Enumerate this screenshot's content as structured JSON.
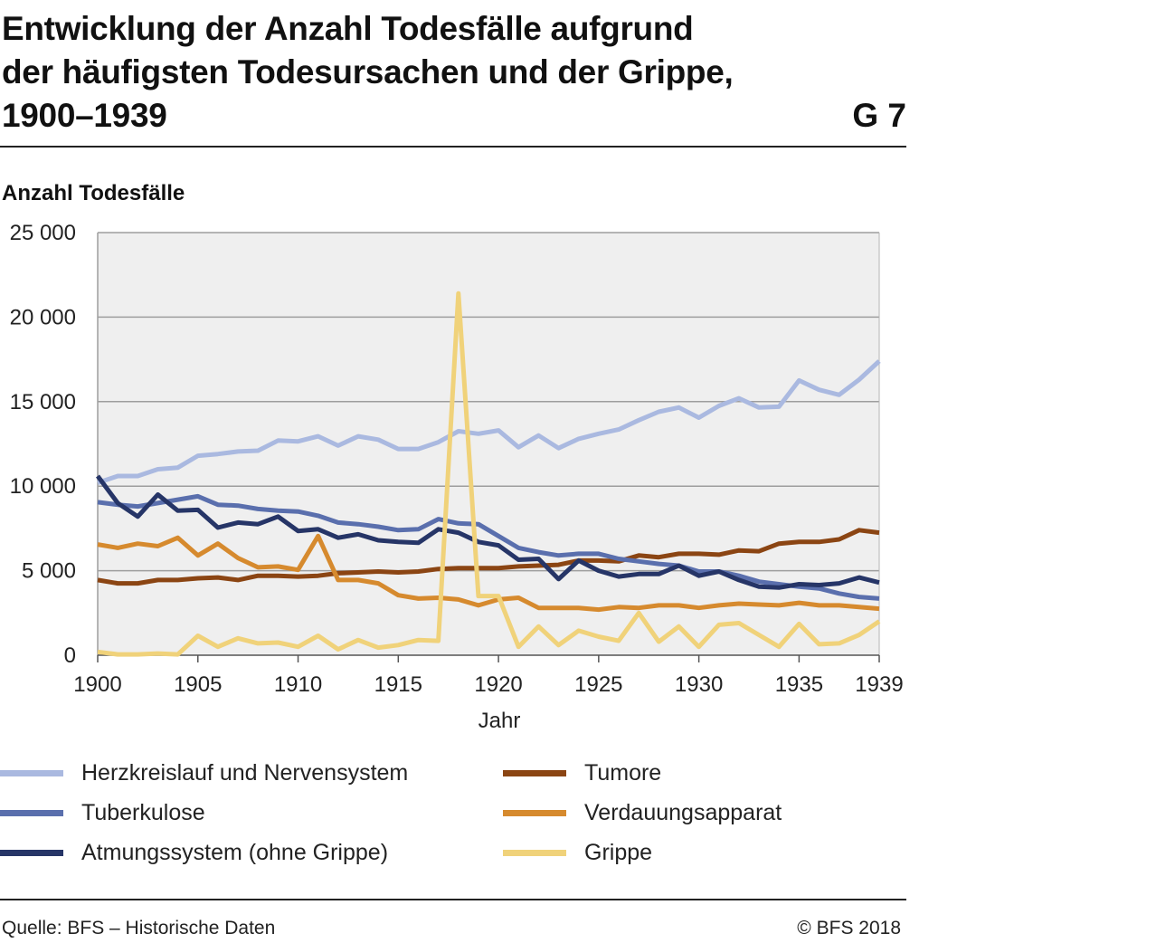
{
  "title_lines": [
    "Entwicklung der Anzahl Todesfälle aufgrund",
    "der häufigsten Todesursachen und der Grippe,",
    "1900–1939"
  ],
  "code": "G 7",
  "ylabel": "Anzahl Todesfälle",
  "source": "Quelle: BFS – Historische Daten",
  "copyright": "© BFS 2018",
  "chart_data": {
    "type": "line",
    "title": "Entwicklung der Anzahl Todesfälle aufgrund der häufigsten Todesursachen und der Grippe, 1900–1939",
    "ylabel": "Anzahl Todesfälle",
    "xlabel": "Jahr",
    "xlim": [
      1900,
      1939
    ],
    "ylim": [
      0,
      25000
    ],
    "y_ticks": [
      0,
      5000,
      10000,
      15000,
      20000,
      25000
    ],
    "y_tick_labels": [
      "0",
      "5 000",
      "10 000",
      "15 000",
      "20 000",
      "25 000"
    ],
    "x_ticks": [
      1900,
      1905,
      1910,
      1915,
      1920,
      1925,
      1930,
      1935,
      1939
    ],
    "x_tick_labels": [
      "1900",
      "1905",
      "1910",
      "1915",
      "1920",
      "1925",
      "1930",
      "1935",
      "1939"
    ],
    "grid": "horizontal",
    "legend_position": "bottom",
    "x": [
      1900,
      1901,
      1902,
      1903,
      1904,
      1905,
      1906,
      1907,
      1908,
      1909,
      1910,
      1911,
      1912,
      1913,
      1914,
      1915,
      1916,
      1917,
      1918,
      1919,
      1920,
      1921,
      1922,
      1923,
      1924,
      1925,
      1926,
      1927,
      1928,
      1929,
      1930,
      1931,
      1932,
      1933,
      1934,
      1935,
      1936,
      1937,
      1938,
      1939
    ],
    "series": [
      {
        "name": "Herzkreislauf und Nervensystem",
        "color": "#aab9e0",
        "values": [
          10200,
          10600,
          10600,
          11000,
          11100,
          11800,
          11900,
          12050,
          12100,
          12700,
          12650,
          12950,
          12400,
          12950,
          12750,
          12200,
          12200,
          12600,
          13250,
          13100,
          13300,
          12300,
          13000,
          12250,
          12800,
          13100,
          13350,
          13900,
          14400,
          14650,
          14050,
          14750,
          15200,
          14650,
          14700,
          16250,
          15700,
          15400,
          16300,
          17400
        ]
      },
      {
        "name": "Tumore",
        "color": "#8b4513",
        "values": [
          4450,
          4250,
          4250,
          4450,
          4450,
          4550,
          4600,
          4450,
          4700,
          4700,
          4650,
          4700,
          4850,
          4900,
          4950,
          4900,
          4950,
          5100,
          5150,
          5150,
          5150,
          5250,
          5300,
          5350,
          5600,
          5600,
          5550,
          5900,
          5800,
          6000,
          6000,
          5950,
          6200,
          6150,
          6600,
          6700,
          6700,
          6850,
          7400,
          7250
        ]
      },
      {
        "name": "Tuberkulose",
        "color": "#5a6fad",
        "values": [
          9050,
          8900,
          8800,
          9000,
          9200,
          9400,
          8900,
          8850,
          8650,
          8550,
          8500,
          8250,
          7850,
          7750,
          7600,
          7400,
          7450,
          8050,
          7800,
          7750,
          7050,
          6350,
          6100,
          5900,
          6000,
          6000,
          5700,
          5550,
          5400,
          5300,
          4950,
          4950,
          4700,
          4350,
          4200,
          4050,
          3950,
          3650,
          3450,
          3350
        ]
      },
      {
        "name": "Verdauungsapparat",
        "color": "#d68a2e",
        "values": [
          6550,
          6350,
          6600,
          6450,
          6950,
          5900,
          6600,
          5750,
          5200,
          5250,
          5050,
          7050,
          4450,
          4450,
          4250,
          3550,
          3350,
          3400,
          3300,
          2950,
          3300,
          3400,
          2800,
          2800,
          2800,
          2700,
          2850,
          2800,
          2950,
          2950,
          2800,
          2950,
          3050,
          3000,
          2950,
          3100,
          2950,
          2950,
          2850,
          2750
        ]
      },
      {
        "name": "Atmungssystem (ohne Grippe)",
        "color": "#263567",
        "values": [
          10600,
          9000,
          8200,
          9500,
          8550,
          8600,
          7550,
          7850,
          7750,
          8200,
          7350,
          7450,
          6950,
          7150,
          6800,
          6700,
          6650,
          7450,
          7250,
          6700,
          6500,
          5650,
          5700,
          4500,
          5600,
          5000,
          4650,
          4800,
          4800,
          5300,
          4700,
          4950,
          4450,
          4050,
          4000,
          4200,
          4150,
          4250,
          4600,
          4300
        ]
      },
      {
        "name": "Grippe",
        "color": "#f0d27a",
        "values": [
          200,
          50,
          50,
          100,
          50,
          1150,
          500,
          1000,
          700,
          750,
          500,
          1150,
          350,
          900,
          450,
          600,
          900,
          850,
          21400,
          3500,
          3500,
          500,
          1700,
          600,
          1450,
          1100,
          850,
          2500,
          800,
          1700,
          500,
          1800,
          1900,
          1200,
          500,
          1850,
          650,
          700,
          1200,
          2000
        ]
      }
    ]
  },
  "legend": [
    {
      "label": "Herzkreislauf und Nervensystem",
      "color": "#aab9e0"
    },
    {
      "label": "Tumore",
      "color": "#8b4513"
    },
    {
      "label": "Tuberkulose",
      "color": "#5a6fad"
    },
    {
      "label": "Verdauungsapparat",
      "color": "#d68a2e"
    },
    {
      "label": "Atmungssystem (ohne Grippe)",
      "color": "#263567"
    },
    {
      "label": "Grippe",
      "color": "#f0d27a"
    }
  ]
}
